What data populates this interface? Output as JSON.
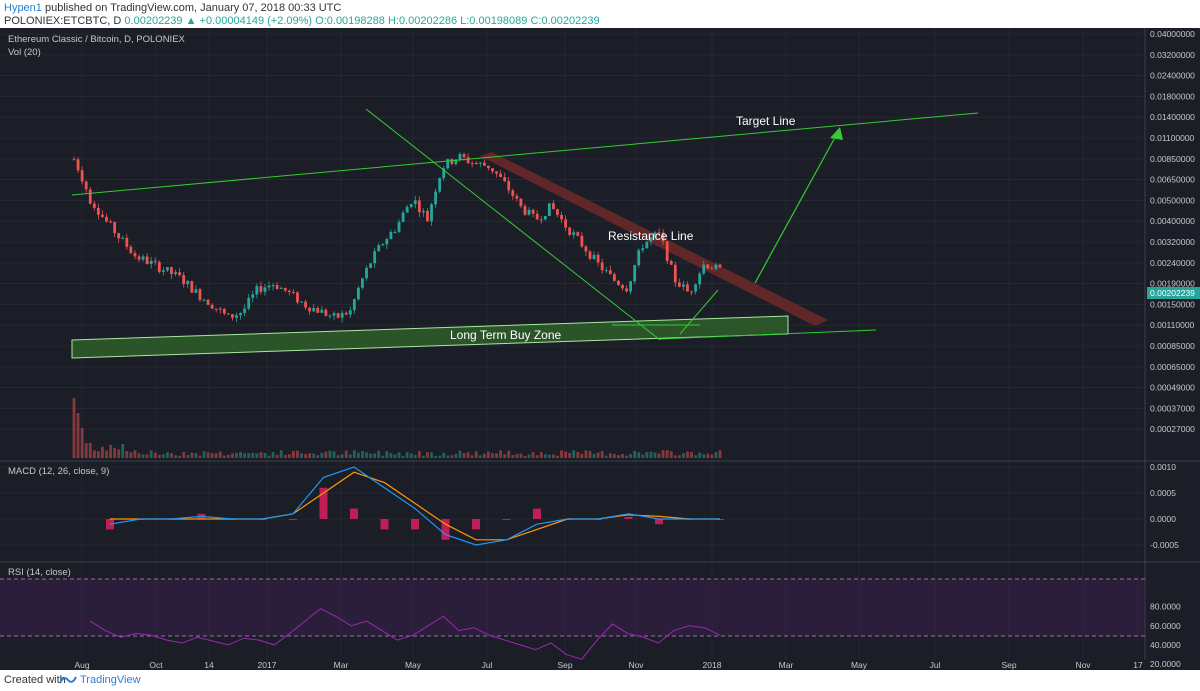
{
  "header": {
    "author": "Hypen1",
    "published": " published on TradingView.com, January 07, 2018 00:33 UTC",
    "symbol": "POLONIEX:ETCBTC, D",
    "price": "0.00202239",
    "change": "▲ +0.00004149 (+2.09%)",
    "ohlc": "O:0.00198288 H:0.00202286 L:0.00198089 C:0.00202239"
  },
  "footer": {
    "created": "Created with",
    "brand": "TradingView"
  },
  "colors": {
    "bg": "#1b1e27",
    "grid": "#2a2e39",
    "up": "#26a69a",
    "down": "#ef5350",
    "trend": "#33cc33",
    "zone": "#2e5e2a",
    "resistance": "#7a2a2a",
    "macd": "#2196f3",
    "signal": "#ff9800",
    "hist": "#e91e63",
    "rsi": "#9c27b0",
    "last_price_bg": "#26a69a"
  },
  "chart_data": [
    {
      "type": "candlestick",
      "title": "Ethereum Classic / Bitcoin, D, POLONIEX",
      "indicator_label": "Vol (20)",
      "scale": "log",
      "x_ticks": [
        "Aug",
        "Oct",
        "14",
        "2017",
        "Mar",
        "May",
        "Jul",
        "Sep",
        "Nov",
        "2018",
        "Mar",
        "May",
        "Jul",
        "Sep",
        "Nov",
        "17"
      ],
      "y_ticks": [
        "0.04000000",
        "0.03200000",
        "0.02400000",
        "0.01800000",
        "0.01400000",
        "0.01100000",
        "0.00850000",
        "0.00650000",
        "0.00500000",
        "0.00400000",
        "0.00320000",
        "0.00240000",
        "0.00190000",
        "0.00150000",
        "0.00110000",
        "0.00085000",
        "0.00065000",
        "0.00049000",
        "0.00037000",
        "0.00027000"
      ],
      "last_price": "0.00202239",
      "series_close_approx": [
        0.0082,
        0.005,
        0.0038,
        0.003,
        0.0024,
        0.0022,
        0.002,
        0.0018,
        0.0015,
        0.0013,
        0.0011,
        0.0012,
        0.0016,
        0.0017,
        0.0015,
        0.0013,
        0.0012,
        0.0011,
        0.0012,
        0.002,
        0.0028,
        0.0035,
        0.005,
        0.0038,
        0.0075,
        0.0085,
        0.0078,
        0.0075,
        0.006,
        0.0045,
        0.0038,
        0.0045,
        0.0035,
        0.0028,
        0.0022,
        0.0018,
        0.0016,
        0.0028,
        0.0032,
        0.0018,
        0.0015,
        0.0022,
        0.002
      ],
      "annotations": [
        "Target Line",
        "Resistance Line",
        "Long Term Buy Zone"
      ]
    },
    {
      "type": "line",
      "title": "MACD (12, 26, close, 9)",
      "y_ticks": [
        "0.0010",
        "0.0005",
        "0.0000",
        "-0.0005"
      ],
      "macd": [
        -0.0001,
        0.0,
        0.0,
        5e-05,
        0.0,
        0.0,
        0.0001,
        0.0008,
        0.001,
        0.0006,
        0.0002,
        -0.0003,
        -0.0005,
        -0.0004,
        -0.0001,
        0.0,
        0.0,
        0.0001,
        0.0,
        0.0,
        0.0
      ],
      "signal": [
        0.0,
        0.0,
        0.0,
        0.0,
        0.0,
        0.0,
        0.0001,
        0.0005,
        0.0009,
        0.0007,
        0.0003,
        -0.0001,
        -0.0004,
        -0.0004,
        -0.0002,
        0.0,
        0.0,
        8e-05,
        5e-05,
        0.0,
        0.0
      ]
    },
    {
      "type": "line",
      "title": "RSI (14, close)",
      "y_ticks": [
        "80.0000",
        "60.0000",
        "40.0000",
        "20.0000"
      ],
      "bands": [
        70,
        30
      ],
      "values": [
        65,
        55,
        48,
        52,
        50,
        45,
        42,
        48,
        44,
        40,
        47,
        45,
        40,
        52,
        65,
        78,
        70,
        60,
        65,
        55,
        45,
        50,
        60,
        70,
        55,
        58,
        50,
        45,
        40,
        35,
        42,
        30,
        25,
        45,
        62,
        52,
        48,
        42,
        55,
        60,
        58,
        50
      ]
    }
  ]
}
